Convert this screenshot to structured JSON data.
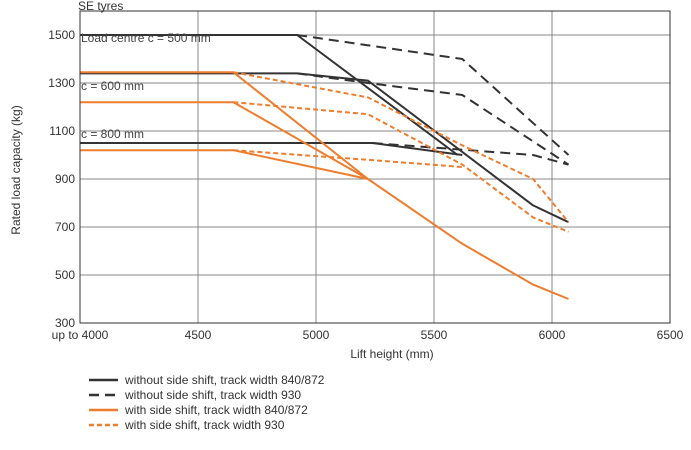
{
  "chart_data": {
    "type": "line",
    "title": "SE tyres",
    "xlabel": "Lift height (mm)",
    "ylabel": "Rated load capacity (kg)",
    "xlim": [
      4000,
      6500
    ],
    "ylim": [
      300,
      1600
    ],
    "x_ticks": [
      4000,
      4500,
      5000,
      5500,
      6000,
      6500
    ],
    "x_tick_labels": [
      "up to 4000",
      "4500",
      "5000",
      "5500",
      "6000",
      "6500"
    ],
    "y_ticks": [
      300,
      500,
      700,
      900,
      1100,
      1300,
      1500
    ],
    "y_tick_labels": [
      "300",
      "500",
      "700",
      "900",
      "1100",
      "1300",
      "1500"
    ],
    "grid": true,
    "legend_position": "bottom-left",
    "annotations": [
      {
        "text": "Load centre c = 500 mm",
        "x": 4000,
        "y": 1470
      },
      {
        "text": "c = 600 mm",
        "x": 4000,
        "y": 1270
      },
      {
        "text": "c = 800 mm",
        "x": 4000,
        "y": 1070
      }
    ],
    "legend": [
      {
        "label": "without side shift, track width 840/872",
        "color": "#333333",
        "style": "solid"
      },
      {
        "label": "without side shift, track width 930",
        "color": "#333333",
        "style": "dashed"
      },
      {
        "label": "with side shift, track width 840/872",
        "color": "#ef7d2e",
        "style": "solid"
      },
      {
        "label": "with side shift, track width 930",
        "color": "#ef7d2e",
        "style": "dotted"
      }
    ],
    "series": [
      {
        "group": 0,
        "load_centre_mm": 500,
        "points": [
          [
            4000,
            1500
          ],
          [
            4920,
            1500
          ],
          [
            5600,
            1000
          ]
        ]
      },
      {
        "group": 1,
        "load_centre_mm": 500,
        "points": [
          [
            4920,
            1500
          ],
          [
            5620,
            1400
          ],
          [
            6070,
            1000
          ]
        ]
      },
      {
        "group": 0,
        "load_centre_mm": 600,
        "points": [
          [
            4000,
            1340
          ],
          [
            4920,
            1340
          ],
          [
            5220,
            1310
          ],
          [
            5920,
            790
          ],
          [
            6070,
            720
          ]
        ]
      },
      {
        "group": 1,
        "load_centre_mm": 600,
        "points": [
          [
            4920,
            1340
          ],
          [
            5220,
            1300
          ],
          [
            5620,
            1250
          ],
          [
            6070,
            960
          ]
        ]
      },
      {
        "group": 0,
        "load_centre_mm": 800,
        "points": [
          [
            4000,
            1050
          ],
          [
            5240,
            1050
          ],
          [
            5620,
            1000
          ]
        ]
      },
      {
        "group": 1,
        "load_centre_mm": 800,
        "points": [
          [
            5240,
            1050
          ],
          [
            5920,
            1000
          ],
          [
            6070,
            960
          ]
        ]
      },
      {
        "group": 2,
        "load_centre_mm": 500,
        "points": [
          [
            4000,
            1345
          ],
          [
            4650,
            1345
          ],
          [
            5220,
            900
          ],
          [
            5620,
            630
          ],
          [
            5920,
            460
          ],
          [
            6070,
            400
          ]
        ]
      },
      {
        "group": 3,
        "load_centre_mm": 500,
        "points": [
          [
            4650,
            1345
          ],
          [
            5220,
            1240
          ],
          [
            5620,
            1040
          ],
          [
            5920,
            900
          ],
          [
            6070,
            720
          ]
        ]
      },
      {
        "group": 2,
        "load_centre_mm": 600,
        "points": [
          [
            4000,
            1220
          ],
          [
            4650,
            1220
          ],
          [
            5220,
            900
          ]
        ]
      },
      {
        "group": 3,
        "load_centre_mm": 600,
        "points": [
          [
            4650,
            1220
          ],
          [
            5220,
            1170
          ],
          [
            5620,
            960
          ],
          [
            5920,
            740
          ],
          [
            6070,
            680
          ]
        ]
      },
      {
        "group": 2,
        "load_centre_mm": 800,
        "points": [
          [
            4000,
            1020
          ],
          [
            4650,
            1020
          ],
          [
            5220,
            900
          ]
        ]
      },
      {
        "group": 3,
        "load_centre_mm": 800,
        "points": [
          [
            4650,
            1020
          ],
          [
            5220,
            980
          ],
          [
            5620,
            950
          ]
        ]
      }
    ]
  }
}
